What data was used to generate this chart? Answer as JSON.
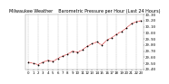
{
  "title": "Milwaukee Weather    Barometric Pressure per Hour (Last 24 Hours)",
  "x_values": [
    0,
    1,
    2,
    3,
    4,
    5,
    6,
    7,
    8,
    9,
    10,
    11,
    12,
    13,
    14,
    15,
    16,
    17,
    18,
    19,
    20,
    21,
    22,
    23
  ],
  "y_values": [
    29.52,
    29.5,
    29.48,
    29.52,
    29.55,
    29.53,
    29.58,
    29.62,
    29.65,
    29.7,
    29.68,
    29.72,
    29.78,
    29.82,
    29.85,
    29.8,
    29.88,
    29.92,
    29.98,
    30.02,
    30.08,
    30.15,
    30.18,
    30.2
  ],
  "line_color": "#cc0000",
  "marker_color": "#000000",
  "bg_color": "#ffffff",
  "plot_bg_color": "#ffffff",
  "grid_color": "#aaaaaa",
  "title_fontsize": 3.5,
  "tick_fontsize": 2.8,
  "ylim": [
    29.4,
    30.3
  ],
  "yticks": [
    29.4,
    29.5,
    29.6,
    29.7,
    29.8,
    29.9,
    30.0,
    30.1,
    30.2,
    30.3
  ],
  "xlim": [
    -0.5,
    23.5
  ]
}
